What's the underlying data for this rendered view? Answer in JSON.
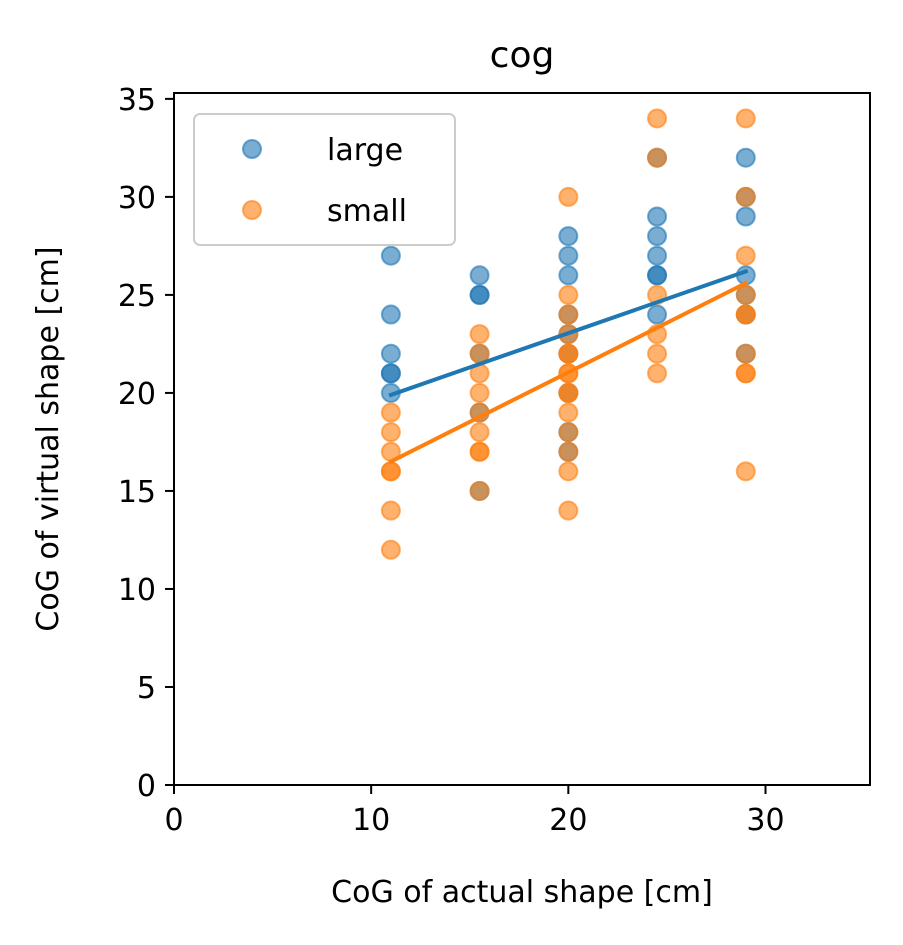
{
  "chart_data": {
    "type": "scatter",
    "title": "cog",
    "xlabel": "CoG of actual shape [cm]",
    "ylabel": "CoG of virtual shape [cm]",
    "xlim": [
      0,
      35.3
    ],
    "ylim": [
      0,
      35.3
    ],
    "xticks": [
      "0",
      "10",
      "20",
      "30"
    ],
    "yticks": [
      "0",
      "5",
      "10",
      "15",
      "20",
      "25",
      "30",
      "35"
    ],
    "legend_position": "top-left",
    "series": [
      {
        "name": "large",
        "color": "#1f77b4",
        "points": [
          [
            11,
            27
          ],
          [
            11,
            24
          ],
          [
            11,
            22
          ],
          [
            11,
            21
          ],
          [
            11,
            21
          ],
          [
            11,
            20
          ],
          [
            15.5,
            26
          ],
          [
            15.5,
            25
          ],
          [
            15.5,
            25
          ],
          [
            15.5,
            22
          ],
          [
            15.5,
            19
          ],
          [
            15.5,
            15
          ],
          [
            20,
            28
          ],
          [
            20,
            27
          ],
          [
            20,
            26
          ],
          [
            20,
            24
          ],
          [
            20,
            23
          ],
          [
            20,
            22
          ],
          [
            20,
            20
          ],
          [
            20,
            18
          ],
          [
            20,
            17
          ],
          [
            24.5,
            29
          ],
          [
            24.5,
            28
          ],
          [
            24.5,
            27
          ],
          [
            24.5,
            26
          ],
          [
            24.5,
            26
          ],
          [
            24.5,
            24
          ],
          [
            24.5,
            32
          ],
          [
            29,
            32
          ],
          [
            29,
            29
          ],
          [
            29,
            26
          ],
          [
            29,
            25
          ],
          [
            29,
            24
          ],
          [
            29,
            22
          ],
          [
            29,
            30
          ]
        ],
        "fit": {
          "x": [
            11,
            29
          ],
          "y": [
            19.9,
            26.2
          ]
        }
      },
      {
        "name": "small",
        "color": "#ff7f0e",
        "points": [
          [
            11,
            19
          ],
          [
            11,
            18
          ],
          [
            11,
            17
          ],
          [
            11,
            16
          ],
          [
            11,
            16
          ],
          [
            11,
            14
          ],
          [
            11,
            12
          ],
          [
            15.5,
            23
          ],
          [
            15.5,
            22
          ],
          [
            15.5,
            21
          ],
          [
            15.5,
            20
          ],
          [
            15.5,
            19
          ],
          [
            15.5,
            18
          ],
          [
            15.5,
            17
          ],
          [
            15.5,
            17
          ],
          [
            15.5,
            15
          ],
          [
            20,
            30
          ],
          [
            20,
            25
          ],
          [
            20,
            24
          ],
          [
            20,
            23
          ],
          [
            20,
            22
          ],
          [
            20,
            22
          ],
          [
            20,
            21
          ],
          [
            20,
            21
          ],
          [
            20,
            20
          ],
          [
            20,
            20
          ],
          [
            20,
            19
          ],
          [
            20,
            18
          ],
          [
            20,
            17
          ],
          [
            20,
            16
          ],
          [
            20,
            14
          ],
          [
            24.5,
            34
          ],
          [
            24.5,
            32
          ],
          [
            24.5,
            25
          ],
          [
            24.5,
            23
          ],
          [
            24.5,
            22
          ],
          [
            24.5,
            21
          ],
          [
            29,
            34
          ],
          [
            29,
            30
          ],
          [
            29,
            27
          ],
          [
            29,
            25
          ],
          [
            29,
            24
          ],
          [
            29,
            24
          ],
          [
            29,
            22
          ],
          [
            29,
            21
          ],
          [
            29,
            21
          ],
          [
            29,
            16
          ]
        ],
        "fit": {
          "x": [
            11,
            29
          ],
          "y": [
            16.5,
            25.6
          ]
        }
      }
    ]
  }
}
